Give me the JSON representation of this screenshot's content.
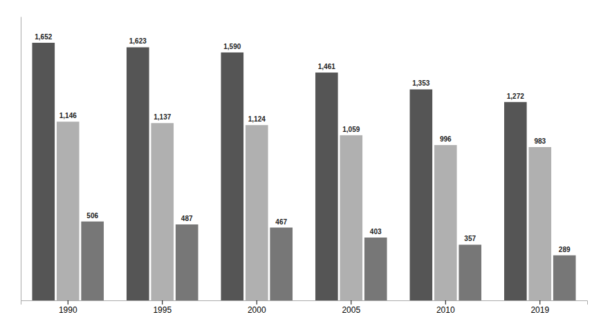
{
  "chart_data": {
    "type": "bar",
    "categories": [
      "1990",
      "1995",
      "2000",
      "2005",
      "2010",
      "2019"
    ],
    "series": [
      {
        "color": "#555555",
        "values": [
          1652,
          1623,
          1590,
          1461,
          1353,
          1272
        ],
        "value_labels": [
          "1,652",
          "1,623",
          "1,590",
          "1,461",
          "1,353",
          "1,272"
        ]
      },
      {
        "color": "#b0b0b0",
        "values": [
          1146,
          1137,
          1124,
          1059,
          996,
          983
        ],
        "value_labels": [
          "1,146",
          "1,137",
          "1,124",
          "1,059",
          "996",
          "983"
        ]
      },
      {
        "color": "#777777",
        "values": [
          506,
          487,
          467,
          403,
          357,
          289
        ],
        "value_labels": [
          "506",
          "487",
          "467",
          "403",
          "357",
          "289"
        ]
      }
    ],
    "ylim": [
      0,
      1820
    ],
    "data_labels": true,
    "tick_labels": "x"
  }
}
